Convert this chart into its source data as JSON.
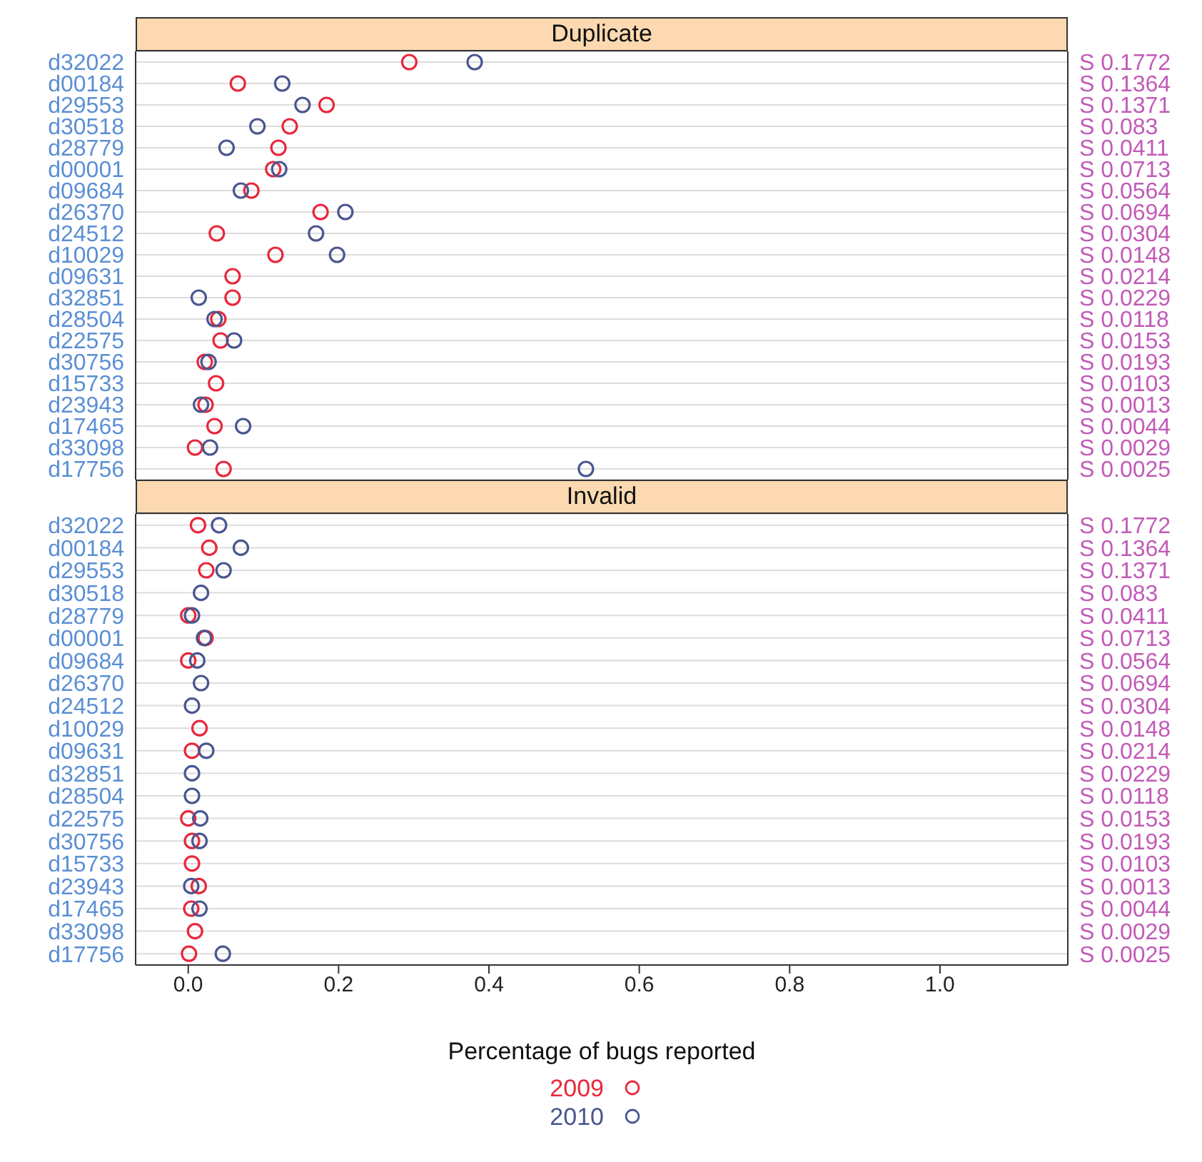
{
  "chart_data": [
    {
      "type": "scatter",
      "title": "Duplicate",
      "categories": [
        "d32022",
        "d00184",
        "d29553",
        "d30518",
        "d28779",
        "d00001",
        "d09684",
        "d26370",
        "d24512",
        "d10029",
        "d09631",
        "d32851",
        "d28504",
        "d22575",
        "d30756",
        "d15733",
        "d23943",
        "d17465",
        "d33098",
        "d17756"
      ],
      "y2_categories": [
        "S 0.1772",
        "S 0.1364",
        "S 0.1371",
        "S 0.083",
        "S 0.0411",
        "S 0.0713",
        "S 0.0564",
        "S 0.0694",
        "S 0.0304",
        "S 0.0148",
        "S 0.0214",
        "S 0.0229",
        "S 0.0118",
        "S 0.0153",
        "S 0.0193",
        "S 0.0103",
        "S 0.0013",
        "S 0.0044",
        "S 0.0029",
        "S 0.0025"
      ],
      "series": [
        {
          "color": "#e8283c",
          "values": [
            0.294,
            0.066,
            0.184,
            0.135,
            0.12,
            0.113,
            0.084,
            0.176,
            0.038,
            0.116,
            0.059,
            0.059,
            0.04,
            0.043,
            0.022,
            0.037,
            0.023,
            0.035,
            0.009,
            0.047
          ]
        },
        {
          "color": "#4a5690",
          "values": [
            0.381,
            0.125,
            0.152,
            0.092,
            0.051,
            0.121,
            0.07,
            0.209,
            0.17,
            0.198,
            null,
            0.014,
            0.035,
            0.061,
            0.027,
            null,
            0.017,
            0.073,
            0.029,
            0.529
          ]
        }
      ],
      "xlim": [
        -0.07,
        1.17
      ],
      "grid": "y",
      "marker": "circle",
      "tick_labels": "y",
      "orientation": "horizontal"
    },
    {
      "type": "scatter",
      "title": "Invalid",
      "xlabel": "Percentage of bugs reported",
      "categories": [
        "d32022",
        "d00184",
        "d29553",
        "d30518",
        "d28779",
        "d00001",
        "d09684",
        "d26370",
        "d24512",
        "d10029",
        "d09631",
        "d32851",
        "d28504",
        "d22575",
        "d30756",
        "d15733",
        "d23943",
        "d17465",
        "d33098",
        "d17756"
      ],
      "y2_categories": [
        "S 0.1772",
        "S 0.1364",
        "S 0.1371",
        "S 0.083",
        "S 0.0411",
        "S 0.0713",
        "S 0.0564",
        "S 0.0694",
        "S 0.0304",
        "S 0.0148",
        "S 0.0214",
        "S 0.0229",
        "S 0.0118",
        "S 0.0153",
        "S 0.0193",
        "S 0.0103",
        "S 0.0013",
        "S 0.0044",
        "S 0.0029",
        "S 0.0025"
      ],
      "series": [
        {
          "name": "2009",
          "color": "#e8283c",
          "values": [
            0.013,
            0.028,
            0.024,
            null,
            0.0,
            0.023,
            0.0,
            null,
            null,
            0.015,
            0.005,
            null,
            null,
            0.0,
            0.005,
            0.005,
            0.014,
            0.004,
            0.009,
            0.001
          ]
        },
        {
          "name": "2010",
          "color": "#4a5690",
          "values": [
            0.041,
            0.07,
            0.047,
            0.017,
            0.005,
            0.021,
            0.012,
            0.017,
            0.005,
            null,
            0.024,
            0.005,
            0.005,
            0.016,
            0.015,
            null,
            0.004,
            0.015,
            null,
            0.046
          ]
        }
      ],
      "xlim": [
        -0.07,
        1.17
      ],
      "xticks": [
        {
          "value": 0,
          "label": "0.0"
        },
        {
          "value": 0.2,
          "label": "0.2"
        },
        {
          "value": 0.4,
          "label": "0.4"
        },
        {
          "value": 0.6,
          "label": "0.6"
        },
        {
          "value": 0.8,
          "label": "0.8"
        },
        {
          "value": 1,
          "label": "1.0"
        }
      ],
      "grid": "y",
      "marker": "circle",
      "legend": "bottom",
      "orientation": "horizontal"
    }
  ]
}
